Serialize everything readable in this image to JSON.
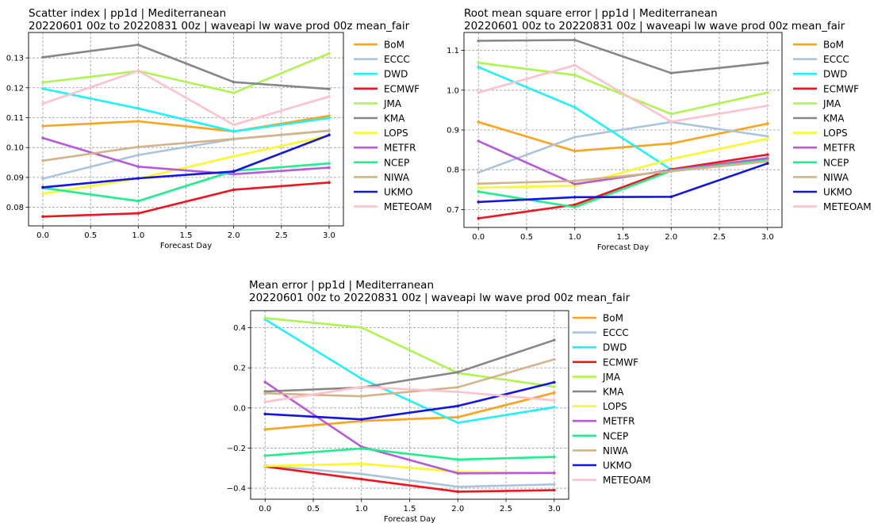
{
  "charts": [
    {
      "type": "line",
      "title": "Scatter index  |  pp1d | Mediterranean",
      "subtitle": "20220601 00z to 20220831 00z  |  waveapi lw wave prod 00z mean_fair",
      "xlabel": "Forecast Day",
      "ylabel": "",
      "xlim": [
        -0.15,
        3.15
      ],
      "ylim": [
        0.0738,
        0.1385
      ],
      "xticks": [
        0.0,
        0.5,
        1.0,
        1.5,
        2.0,
        2.5,
        3.0
      ],
      "yticks": [
        0.08,
        0.09,
        0.1,
        0.11,
        0.12,
        0.13
      ],
      "tick_decimals": 2,
      "grid": true,
      "legend_placement": "outside-right",
      "x": [
        0,
        1,
        2,
        3
      ],
      "series": [
        {
          "name": "BoM",
          "color": "#FFA31A",
          "values": [
            0.1072,
            0.1088,
            0.1054,
            0.1106
          ]
        },
        {
          "name": "ECCC",
          "color": "#A9C4DC",
          "values": [
            0.0896,
            0.0975,
            0.1028,
            0.1057
          ]
        },
        {
          "name": "DWD",
          "color": "#1EF2FA",
          "values": [
            0.1197,
            0.1131,
            0.1054,
            0.1099
          ]
        },
        {
          "name": "ECMWF",
          "color": "#F0141E",
          "values": [
            0.0769,
            0.078,
            0.0859,
            0.0883
          ]
        },
        {
          "name": "JMA",
          "color": "#AEF550",
          "values": [
            0.1218,
            0.1256,
            0.1183,
            0.1315
          ]
        },
        {
          "name": "KMA",
          "color": "#878787",
          "values": [
            0.1302,
            0.1344,
            0.1219,
            0.1196
          ]
        },
        {
          "name": "LOPS",
          "color": "#FAFA2A",
          "values": [
            0.0846,
            0.0896,
            0.0971,
            0.104
          ]
        },
        {
          "name": "METFR",
          "color": "#B65ADA",
          "values": [
            0.1032,
            0.0936,
            0.0911,
            0.0933
          ]
        },
        {
          "name": "NCEP",
          "color": "#1EF08C",
          "values": [
            0.0865,
            0.0821,
            0.0922,
            0.0947
          ]
        },
        {
          "name": "NIWA",
          "color": "#D3B48A",
          "values": [
            0.0956,
            0.1002,
            0.1029,
            0.1056
          ]
        },
        {
          "name": "UKMO",
          "color": "#1414E6",
          "values": [
            0.0867,
            0.0897,
            0.092,
            0.1042
          ]
        },
        {
          "name": "METEOAM",
          "color": "#FFC1CC",
          "values": [
            0.1147,
            0.1257,
            0.1076,
            0.1171
          ]
        }
      ]
    },
    {
      "type": "line",
      "title": "Root mean square error  |  pp1d | Mediterranean",
      "subtitle": "20220601 00z to 20220831 00z  |  waveapi lw wave prod 00z mean_fair",
      "xlabel": "Forecast Day",
      "ylabel": "",
      "xlim": [
        -0.15,
        3.15
      ],
      "ylim": [
        0.655,
        1.145
      ],
      "xticks": [
        0.0,
        0.5,
        1.0,
        1.5,
        2.0,
        2.5,
        3.0
      ],
      "yticks": [
        0.7,
        0.8,
        0.9,
        1.0,
        1.1
      ],
      "tick_decimals": 1,
      "grid": true,
      "legend_placement": "outside-right",
      "x": [
        0,
        1,
        2,
        3
      ],
      "series": [
        {
          "name": "BoM",
          "color": "#FFA31A",
          "values": [
            0.92,
            0.847,
            0.866,
            0.916
          ]
        },
        {
          "name": "ECCC",
          "color": "#A9C4DC",
          "values": [
            0.793,
            0.882,
            0.92,
            0.884
          ]
        },
        {
          "name": "DWD",
          "color": "#1EF2FA",
          "values": [
            1.058,
            0.957,
            0.8,
            0.826
          ]
        },
        {
          "name": "ECMWF",
          "color": "#F0141E",
          "values": [
            0.678,
            0.712,
            0.801,
            0.838
          ]
        },
        {
          "name": "JMA",
          "color": "#AEF550",
          "values": [
            1.069,
            1.038,
            0.94,
            0.994
          ]
        },
        {
          "name": "KMA",
          "color": "#878787",
          "values": [
            1.124,
            1.126,
            1.043,
            1.069
          ]
        },
        {
          "name": "LOPS",
          "color": "#FAFA2A",
          "values": [
            0.755,
            0.76,
            0.827,
            0.878
          ]
        },
        {
          "name": "METFR",
          "color": "#B65ADA",
          "values": [
            0.872,
            0.764,
            0.799,
            0.829
          ]
        },
        {
          "name": "NCEP",
          "color": "#1EF08C",
          "values": [
            0.745,
            0.706,
            0.797,
            0.824
          ]
        },
        {
          "name": "NIWA",
          "color": "#D3B48A",
          "values": [
            0.765,
            0.772,
            0.796,
            0.821
          ]
        },
        {
          "name": "UKMO",
          "color": "#1414E6",
          "values": [
            0.719,
            0.731,
            0.732,
            0.816
          ]
        },
        {
          "name": "METEOAM",
          "color": "#FFC1CC",
          "values": [
            0.994,
            1.063,
            0.921,
            0.961
          ]
        }
      ]
    },
    {
      "type": "line",
      "title": "Mean error  |  pp1d | Mediterranean",
      "subtitle": "20220601 00z to 20220831 00z  |  waveapi lw wave prod 00z mean_fair",
      "xlabel": "Forecast Day",
      "ylabel": "",
      "xlim": [
        -0.15,
        3.15
      ],
      "ylim": [
        -0.455,
        0.485
      ],
      "xticks": [
        0.0,
        0.5,
        1.0,
        1.5,
        2.0,
        2.5,
        3.0
      ],
      "yticks": [
        -0.4,
        -0.2,
        0.0,
        0.2,
        0.4
      ],
      "tick_decimals": 1,
      "grid": true,
      "legend_placement": "outside-right",
      "x": [
        0,
        1,
        2,
        3
      ],
      "series": [
        {
          "name": "BoM",
          "color": "#FFA31A",
          "values": [
            -0.107,
            -0.065,
            -0.046,
            0.076
          ]
        },
        {
          "name": "ECCC",
          "color": "#A9C4DC",
          "values": [
            -0.287,
            -0.329,
            -0.393,
            -0.381
          ]
        },
        {
          "name": "DWD",
          "color": "#1EF2FA",
          "values": [
            0.441,
            0.146,
            -0.074,
            0.004
          ]
        },
        {
          "name": "ECMWF",
          "color": "#F0141E",
          "values": [
            -0.292,
            -0.355,
            -0.417,
            -0.41
          ]
        },
        {
          "name": "JMA",
          "color": "#AEF550",
          "values": [
            0.448,
            0.401,
            0.174,
            0.106
          ]
        },
        {
          "name": "KMA",
          "color": "#878787",
          "values": [
            0.082,
            0.102,
            0.178,
            0.338
          ]
        },
        {
          "name": "LOPS",
          "color": "#FAFA2A",
          "values": [
            -0.29,
            -0.278,
            -0.318,
            -0.325
          ]
        },
        {
          "name": "METFR",
          "color": "#B65ADA",
          "values": [
            0.129,
            -0.193,
            -0.326,
            -0.324
          ]
        },
        {
          "name": "NCEP",
          "color": "#1EF08C",
          "values": [
            -0.238,
            -0.202,
            -0.257,
            -0.244
          ]
        },
        {
          "name": "NIWA",
          "color": "#D3B48A",
          "values": [
            0.073,
            0.058,
            0.103,
            0.242
          ]
        },
        {
          "name": "UKMO",
          "color": "#1414E6",
          "values": [
            -0.03,
            -0.057,
            0.01,
            0.128
          ]
        },
        {
          "name": "METEOAM",
          "color": "#FFC1CC",
          "values": [
            0.03,
            0.105,
            0.08,
            0.038
          ]
        }
      ]
    }
  ]
}
